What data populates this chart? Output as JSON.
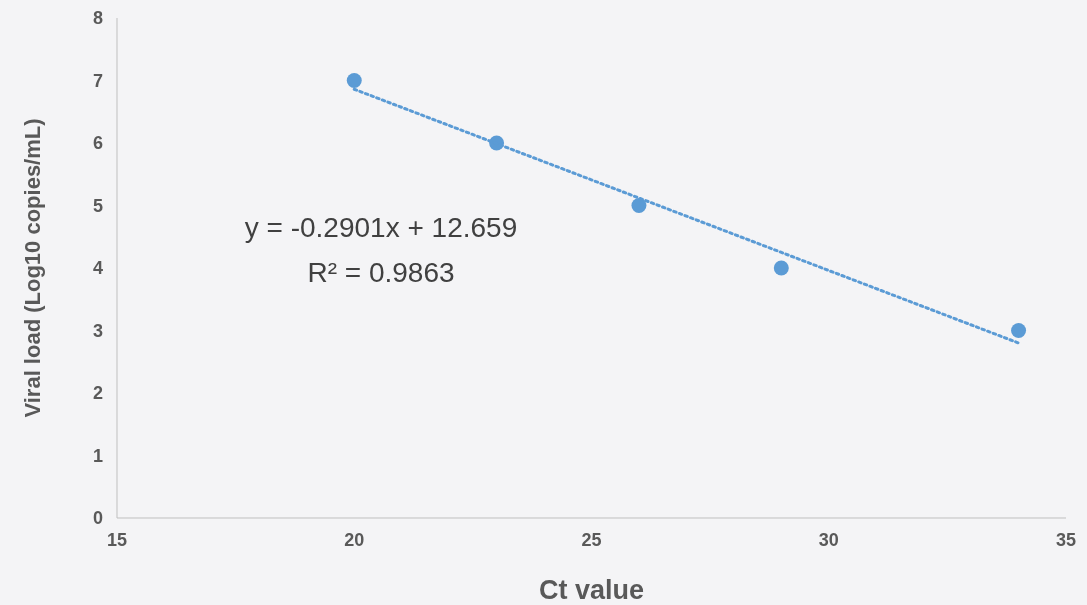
{
  "chart_data": {
    "type": "scatter",
    "xlabel": "Ct value",
    "ylabel": "Viral load (Log10 copies/mL)",
    "x": [
      20,
      23,
      26,
      29,
      34
    ],
    "series": [
      {
        "color": "#5b9bd5",
        "values": [
          7,
          6,
          5,
          4,
          3
        ],
        "marker": "circle"
      },
      {
        "type": "line",
        "color": "#5b9bd5",
        "x": [
          20,
          34
        ],
        "values": [
          6.86,
          2.8
        ],
        "line_style": "dotted"
      }
    ],
    "xlim": [
      15,
      35
    ],
    "xticks": [
      15,
      20,
      25,
      30,
      35
    ],
    "ylim": [
      0,
      8
    ],
    "yticks": [
      0,
      1,
      2,
      3,
      4,
      5,
      6,
      7,
      8
    ],
    "annotations": [
      "y = -0.2901x + 12.659",
      "R² = 0.9863"
    ]
  }
}
